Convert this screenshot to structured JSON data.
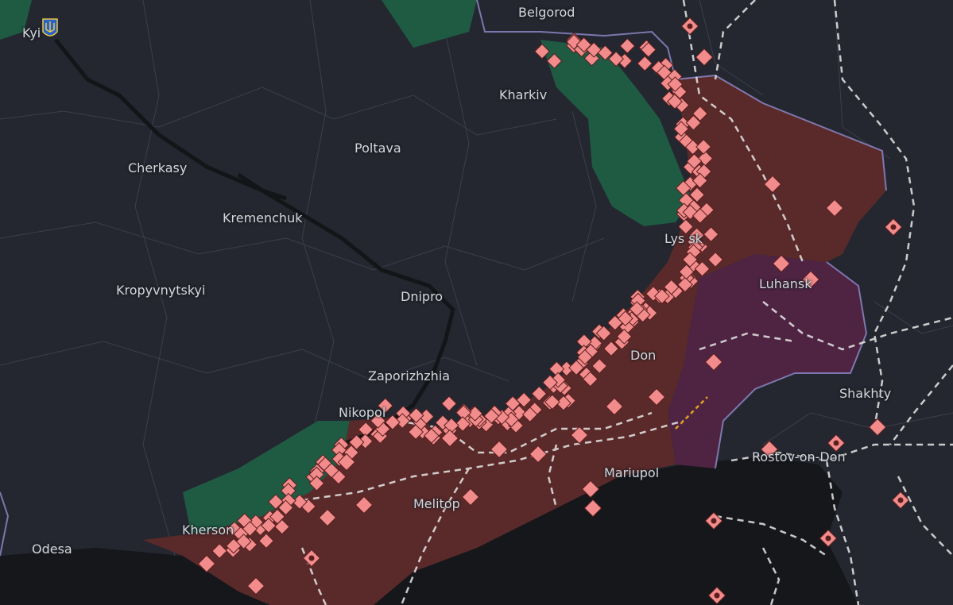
{
  "map": {
    "cities": [
      {
        "key": "kyiv",
        "name": "Kyi"
      },
      {
        "key": "belgorod",
        "name": "Belgorod"
      },
      {
        "key": "kharkiv",
        "name": "Kharkiv"
      },
      {
        "key": "poltava",
        "name": "Poltava"
      },
      {
        "key": "cherkasy",
        "name": "Cherkasy"
      },
      {
        "key": "kremenchuk",
        "name": "Kremenchuk"
      },
      {
        "key": "lysychansk",
        "name": "Lys         sk"
      },
      {
        "key": "luhansk",
        "name": "Luhansk"
      },
      {
        "key": "kropyvnytskyi",
        "name": "Kropyvnytskyi"
      },
      {
        "key": "dnipro",
        "name": "Dnipro"
      },
      {
        "key": "donetsk",
        "name": "Don"
      },
      {
        "key": "zaporizhzhia",
        "name": "Zaporizhzhia"
      },
      {
        "key": "shakhty",
        "name": "Shakhty"
      },
      {
        "key": "nikopol",
        "name": "Nikopol"
      },
      {
        "key": "rostov",
        "name": "Rostov-on-Don"
      },
      {
        "key": "mariupol",
        "name": "Mariupol"
      },
      {
        "key": "melitopol",
        "name": "Melitop"
      },
      {
        "key": "kherson",
        "name": "Kherson"
      },
      {
        "key": "odesa",
        "name": "Odesa"
      }
    ],
    "colors": {
      "land": "#24272f",
      "sea": "#16171b",
      "occupied": "#5a2a2a",
      "occupied_pre2022": "#4e2442",
      "liberated": "#1f5a43",
      "event_marker": "#f28b8b",
      "border": "#8b86c4",
      "railway": "#e8e8e8",
      "river": "#141518"
    },
    "icons": [
      "ukraine-trident-icon",
      "event-marker-icon",
      "explosion-marker-icon",
      "railway-line"
    ]
  }
}
